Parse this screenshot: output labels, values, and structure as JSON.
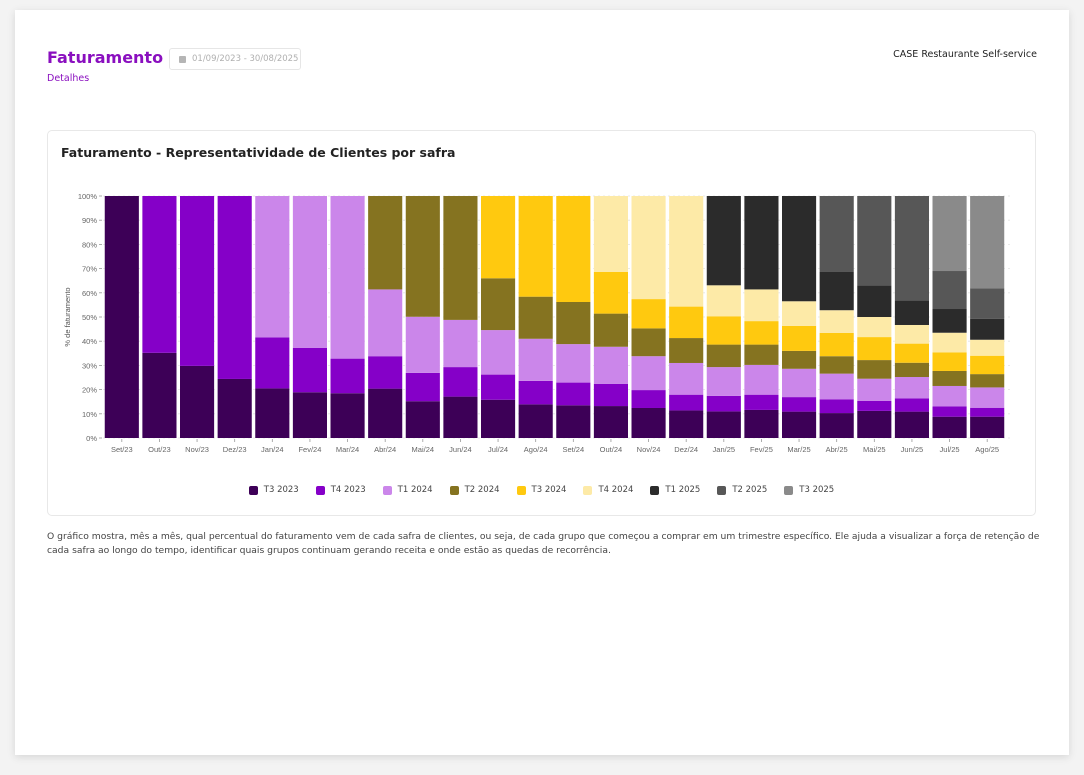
{
  "header": {
    "title": "Faturamento",
    "subtitle": "Detalhes",
    "date_range": "01/09/2023 - 30/08/2025",
    "date_icon": "calendar-icon",
    "company": "CASE Restaurante Self-service"
  },
  "card": {
    "title": "Faturamento - Representatividade de Clientes por safra"
  },
  "description": "O gráfico mostra, mês a mês, qual percentual do faturamento vem de cada safra de clientes, ou seja, de cada grupo que começou a comprar em um trimestre específico. Ele ajuda a visualizar a força de retenção de cada safra ao longo do tempo, identificar quais grupos continuam gerando receita e onde estão as quedas de recorrência.",
  "chart_data": {
    "type": "bar",
    "stacked": true,
    "title": "Faturamento - Representatividade de Clientes por safra",
    "xlabel": "",
    "ylabel": "% de faturamento",
    "ylim": [
      0,
      100
    ],
    "yticks": [
      "0%",
      "10%",
      "20%",
      "30%",
      "40%",
      "50%",
      "60%",
      "70%",
      "80%",
      "90%",
      "100%"
    ],
    "grid": true,
    "legend_position": "bottom-center",
    "categories": [
      "Set/23",
      "Out/23",
      "Nov/23",
      "Dez/23",
      "Jan/24",
      "Fev/24",
      "Mar/24",
      "Abr/24",
      "Mai/24",
      "Jun/24",
      "Jul/24",
      "Ago/24",
      "Set/24",
      "Out/24",
      "Nov/24",
      "Dez/24",
      "Jan/25",
      "Fev/25",
      "Mar/25",
      "Abr/25",
      "Mai/25",
      "Jun/25",
      "Jul/25",
      "Ago/25"
    ],
    "series": [
      {
        "name": "T3 2023",
        "color": "#3d0057",
        "values": [
          100,
          35.2,
          29.8,
          24.4,
          20.5,
          18.9,
          18.5,
          20.4,
          15.2,
          17.1,
          15.8,
          13.9,
          13.5,
          13.2,
          12.4,
          11.4,
          11.0,
          11.6,
          10.9,
          10.3,
          11.2,
          10.9,
          8.8,
          8.8
        ]
      },
      {
        "name": "T4 2023",
        "color": "#8500c8",
        "values": [
          0,
          64.8,
          70.2,
          75.6,
          21.1,
          18.3,
          14.3,
          13.4,
          11.7,
          12.2,
          10.4,
          9.7,
          9.4,
          9.2,
          7.4,
          6.5,
          6.4,
          6.3,
          6.0,
          5.7,
          4.1,
          5.5,
          4.3,
          3.7
        ]
      },
      {
        "name": "T1 2024",
        "color": "#cb86ea",
        "values": [
          0,
          0,
          0,
          0,
          58.4,
          62.8,
          67.2,
          27.6,
          23.2,
          19.5,
          18.4,
          17.4,
          15.9,
          15.3,
          14.0,
          13.1,
          11.9,
          12.3,
          11.7,
          10.6,
          9.2,
          8.8,
          8.4,
          8.4
        ]
      },
      {
        "name": "T2 2024",
        "color": "#857320",
        "values": [
          0,
          0,
          0,
          0,
          0,
          0,
          0,
          38.6,
          49.9,
          51.2,
          21.4,
          17.4,
          17.4,
          13.7,
          11.5,
          10.3,
          9.3,
          8.4,
          7.4,
          7.2,
          7.7,
          5.9,
          6.2,
          5.5
        ]
      },
      {
        "name": "T3 2024",
        "color": "#ffc90f",
        "values": [
          0,
          0,
          0,
          0,
          0,
          0,
          0,
          0,
          0,
          0,
          34.0,
          41.6,
          43.8,
          17.2,
          12.1,
          13.0,
          11.7,
          9.7,
          10.3,
          9.6,
          9.5,
          7.9,
          7.7,
          7.6
        ]
      },
      {
        "name": "T4 2024",
        "color": "#fdeaa7",
        "values": [
          0,
          0,
          0,
          0,
          0,
          0,
          0,
          0,
          0,
          0,
          0,
          0,
          0,
          31.4,
          42.6,
          45.7,
          12.8,
          13.1,
          10.2,
          9.4,
          8.3,
          7.7,
          8.1,
          6.6
        ]
      },
      {
        "name": "T1 2025",
        "color": "#2b2b2b",
        "values": [
          0,
          0,
          0,
          0,
          0,
          0,
          0,
          0,
          0,
          0,
          0,
          0,
          0,
          0,
          0,
          0,
          36.9,
          38.6,
          43.5,
          15.8,
          13.1,
          10.2,
          9.8,
          8.6
        ]
      },
      {
        "name": "T2 2025",
        "color": "#575757",
        "values": [
          0,
          0,
          0,
          0,
          0,
          0,
          0,
          0,
          0,
          0,
          0,
          0,
          0,
          0,
          0,
          0,
          0,
          0,
          0,
          31.4,
          36.9,
          43.1,
          15.7,
          12.7
        ]
      },
      {
        "name": "T3 2025",
        "color": "#8a8a8a",
        "values": [
          0,
          0,
          0,
          0,
          0,
          0,
          0,
          0,
          0,
          0,
          0,
          0,
          0,
          0,
          0,
          0,
          0,
          0,
          0,
          0,
          0,
          0,
          31.0,
          38.1
        ]
      }
    ]
  }
}
